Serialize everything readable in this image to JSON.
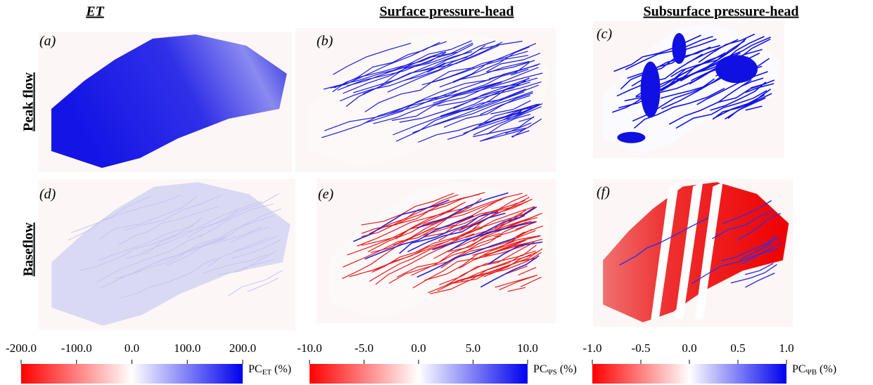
{
  "columns": [
    "ET",
    "Surface pressure-head",
    "Subsurface pressure-head"
  ],
  "rows": [
    "Peak flow",
    "Baseflow"
  ],
  "panels": [
    "(a)",
    "(b)",
    "(c)",
    "(d)",
    "(e)",
    "(f)"
  ],
  "colorbars": [
    {
      "xlim": [
        -200,
        200
      ],
      "xticks": [
        {
          "value": -200,
          "label": "-200.0"
        },
        {
          "value": -100,
          "label": "-100.0"
        },
        {
          "value": 0,
          "label": "0.0"
        },
        {
          "value": 100,
          "label": "100.0"
        },
        {
          "value": 200,
          "label": "200.0"
        }
      ],
      "label": {
        "main": "PC",
        "sub": "ET",
        "unit": "(%)"
      }
    },
    {
      "xlim": [
        -10,
        10
      ],
      "xticks": [
        {
          "value": -10,
          "label": "-10.0"
        },
        {
          "value": -5,
          "label": "-5.0"
        },
        {
          "value": 0,
          "label": "0.0"
        },
        {
          "value": 5,
          "label": "5.0"
        },
        {
          "value": 10,
          "label": "10.0"
        }
      ],
      "label": {
        "main": "PC",
        "sub": "ΨS",
        "unit": "(%)"
      }
    },
    {
      "xlim": [
        -1,
        1
      ],
      "xticks": [
        {
          "value": -1,
          "label": "-1.0"
        },
        {
          "value": -0.5,
          "label": "-0.5"
        },
        {
          "value": 0,
          "label": "0.0"
        },
        {
          "value": 0.5,
          "label": "0.5"
        },
        {
          "value": 1,
          "label": "1.0"
        }
      ],
      "label": {
        "main": "PC",
        "sub": "ΨB",
        "unit": "(%)"
      }
    }
  ]
}
